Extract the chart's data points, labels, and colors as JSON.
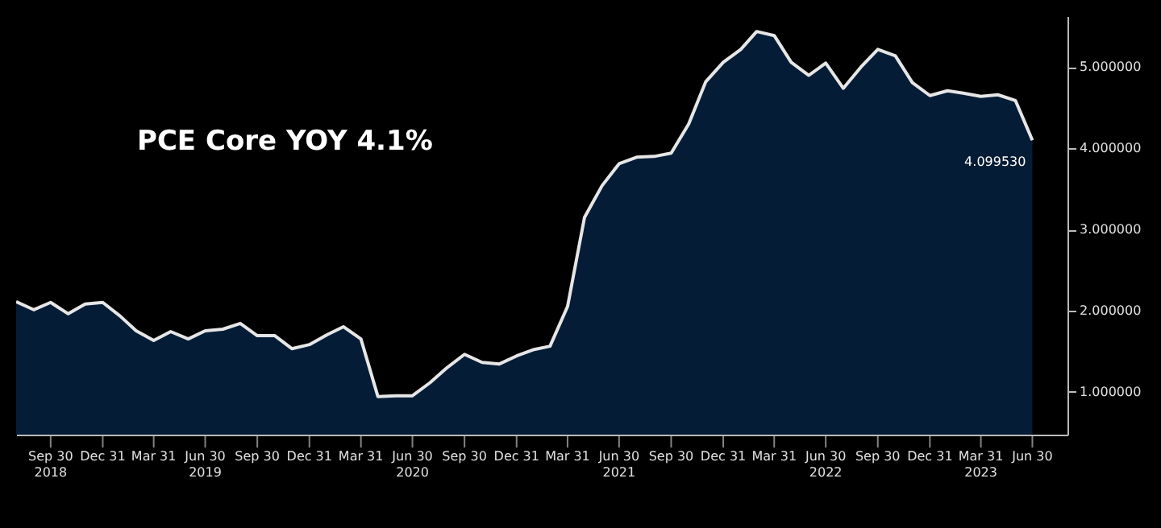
{
  "chart_data": {
    "type": "area",
    "x": [
      "2018-07-31",
      "2018-08-31",
      "2018-09-30",
      "2018-10-31",
      "2018-11-30",
      "2018-12-31",
      "2019-01-31",
      "2019-02-28",
      "2019-03-31",
      "2019-04-30",
      "2019-05-31",
      "2019-06-30",
      "2019-07-31",
      "2019-08-31",
      "2019-09-30",
      "2019-10-31",
      "2019-11-30",
      "2019-12-31",
      "2020-01-31",
      "2020-02-29",
      "2020-03-31",
      "2020-04-30",
      "2020-05-31",
      "2020-06-30",
      "2020-07-31",
      "2020-08-31",
      "2020-09-30",
      "2020-10-31",
      "2020-11-30",
      "2020-12-31",
      "2021-01-31",
      "2021-02-28",
      "2021-03-31",
      "2021-04-30",
      "2021-05-31",
      "2021-06-30",
      "2021-07-31",
      "2021-08-31",
      "2021-09-30",
      "2021-10-31",
      "2021-11-30",
      "2021-12-31",
      "2022-01-31",
      "2022-02-28",
      "2022-03-31",
      "2022-04-30",
      "2022-05-31",
      "2022-06-30",
      "2022-07-31",
      "2022-08-31",
      "2022-09-30",
      "2022-10-31",
      "2022-11-30",
      "2022-12-31",
      "2023-01-31",
      "2023-02-28",
      "2023-03-31",
      "2023-04-30",
      "2023-05-31",
      "2023-06-30"
    ],
    "series": [
      {
        "color": "#051c36",
        "values": [
          2.11,
          2.01,
          2.1,
          1.96,
          2.08,
          2.1,
          1.93,
          1.75,
          1.63,
          1.74,
          1.65,
          1.75,
          1.77,
          1.84,
          1.69,
          1.69,
          1.53,
          1.58,
          1.7,
          1.8,
          1.65,
          0.94,
          0.95,
          0.95,
          1.11,
          1.3,
          1.46,
          1.36,
          1.34,
          1.44,
          1.52,
          1.56,
          2.05,
          3.15,
          3.54,
          3.81,
          3.89,
          3.9,
          3.94,
          4.3,
          4.82,
          5.06,
          5.22,
          5.44,
          5.39,
          5.06,
          4.9,
          5.05,
          4.74,
          5.0,
          5.22,
          5.14,
          4.81,
          4.65,
          4.71,
          4.68,
          4.64,
          4.66,
          4.59,
          4.09953
        ],
        "value_labels": [
          null,
          null,
          null,
          null,
          null,
          null,
          null,
          null,
          null,
          null,
          null,
          null,
          null,
          null,
          null,
          null,
          null,
          null,
          null,
          null,
          null,
          null,
          null,
          null,
          null,
          null,
          null,
          null,
          null,
          null,
          null,
          null,
          null,
          null,
          null,
          null,
          null,
          null,
          null,
          null,
          null,
          null,
          null,
          null,
          null,
          null,
          null,
          null,
          null,
          null,
          null,
          null,
          null,
          null,
          null,
          null,
          null,
          null,
          null,
          "4.099530"
        ]
      }
    ],
    "xlim": [
      "2018-07-31",
      "2023-08-31"
    ],
    "xticks": [
      {
        "value": "2018-09-30",
        "label": "Sep 30\n2018"
      },
      {
        "value": "2018-12-31",
        "label": "Dec 31"
      },
      {
        "value": "2019-03-31",
        "label": "Mar 31"
      },
      {
        "value": "2019-06-30",
        "label": "Jun 30\n2019"
      },
      {
        "value": "2019-09-30",
        "label": "Sep 30"
      },
      {
        "value": "2019-12-31",
        "label": "Dec 31"
      },
      {
        "value": "2020-03-31",
        "label": "Mar 31"
      },
      {
        "value": "2020-06-30",
        "label": "Jun 30\n2020"
      },
      {
        "value": "2020-09-30",
        "label": "Sep 30"
      },
      {
        "value": "2020-12-31",
        "label": "Dec 31"
      },
      {
        "value": "2021-03-31",
        "label": "Mar 31"
      },
      {
        "value": "2021-06-30",
        "label": "Jun 30\n2021"
      },
      {
        "value": "2021-09-30",
        "label": "Sep 30"
      },
      {
        "value": "2021-12-31",
        "label": "Dec 31"
      },
      {
        "value": "2022-03-31",
        "label": "Mar 31"
      },
      {
        "value": "2022-06-30",
        "label": "Jun 30\n2022"
      },
      {
        "value": "2022-09-30",
        "label": "Sep 30"
      },
      {
        "value": "2022-12-31",
        "label": "Dec 31"
      },
      {
        "value": "2023-03-31",
        "label": "Mar 31\n2023"
      },
      {
        "value": "2023-06-30",
        "label": "Jun 30"
      }
    ],
    "ylim": [
      0.47,
      5.63
    ],
    "yticks": [
      {
        "value": 1,
        "label": "1.000000"
      },
      {
        "value": 2,
        "label": "2.000000"
      },
      {
        "value": 3,
        "label": "3.000000"
      },
      {
        "value": 4,
        "label": "4.000000"
      },
      {
        "value": 5,
        "label": "5.000000"
      }
    ],
    "annotations": [
      "PCE Core YOY 4.1%"
    ]
  }
}
